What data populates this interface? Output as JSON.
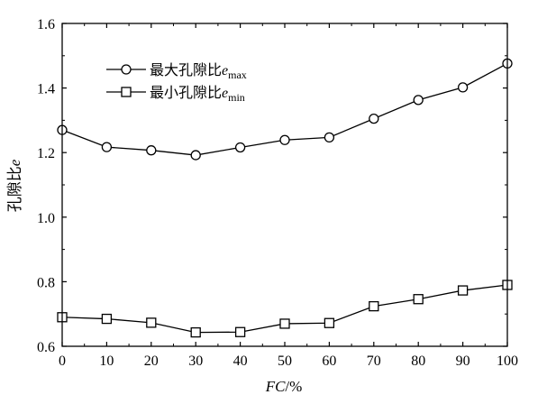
{
  "chart_data": {
    "type": "line",
    "x": [
      0,
      10,
      20,
      30,
      40,
      50,
      60,
      70,
      80,
      90,
      100
    ],
    "series": [
      {
        "name": "最大孔隙比e_max",
        "label_main": "最大孔隙比",
        "label_var": "e",
        "label_sub": "max",
        "marker": "circle",
        "values": [
          1.27,
          1.217,
          1.207,
          1.192,
          1.216,
          1.239,
          1.247,
          1.305,
          1.363,
          1.402,
          1.476
        ]
      },
      {
        "name": "最小孔隙比e_min",
        "label_main": "最小孔隙比",
        "label_var": "e",
        "label_sub": "min",
        "marker": "square",
        "values": [
          0.69,
          0.685,
          0.673,
          0.643,
          0.644,
          0.67,
          0.672,
          0.724,
          0.746,
          0.773,
          0.79
        ]
      }
    ],
    "xlabel_italic": "FC",
    "xlabel_rest": "/%",
    "ylabel_main": "孔隙比",
    "ylabel_var": "e",
    "xlim": [
      0,
      100
    ],
    "ylim": [
      0.6,
      1.6
    ],
    "xticks": [
      "0",
      "10",
      "20",
      "30",
      "40",
      "50",
      "60",
      "70",
      "80",
      "90",
      "100"
    ],
    "yticks": [
      "0.6",
      "0.8",
      "1.0",
      "1.2",
      "1.4",
      "1.6"
    ],
    "grid": false,
    "legend_position": "top-left"
  }
}
